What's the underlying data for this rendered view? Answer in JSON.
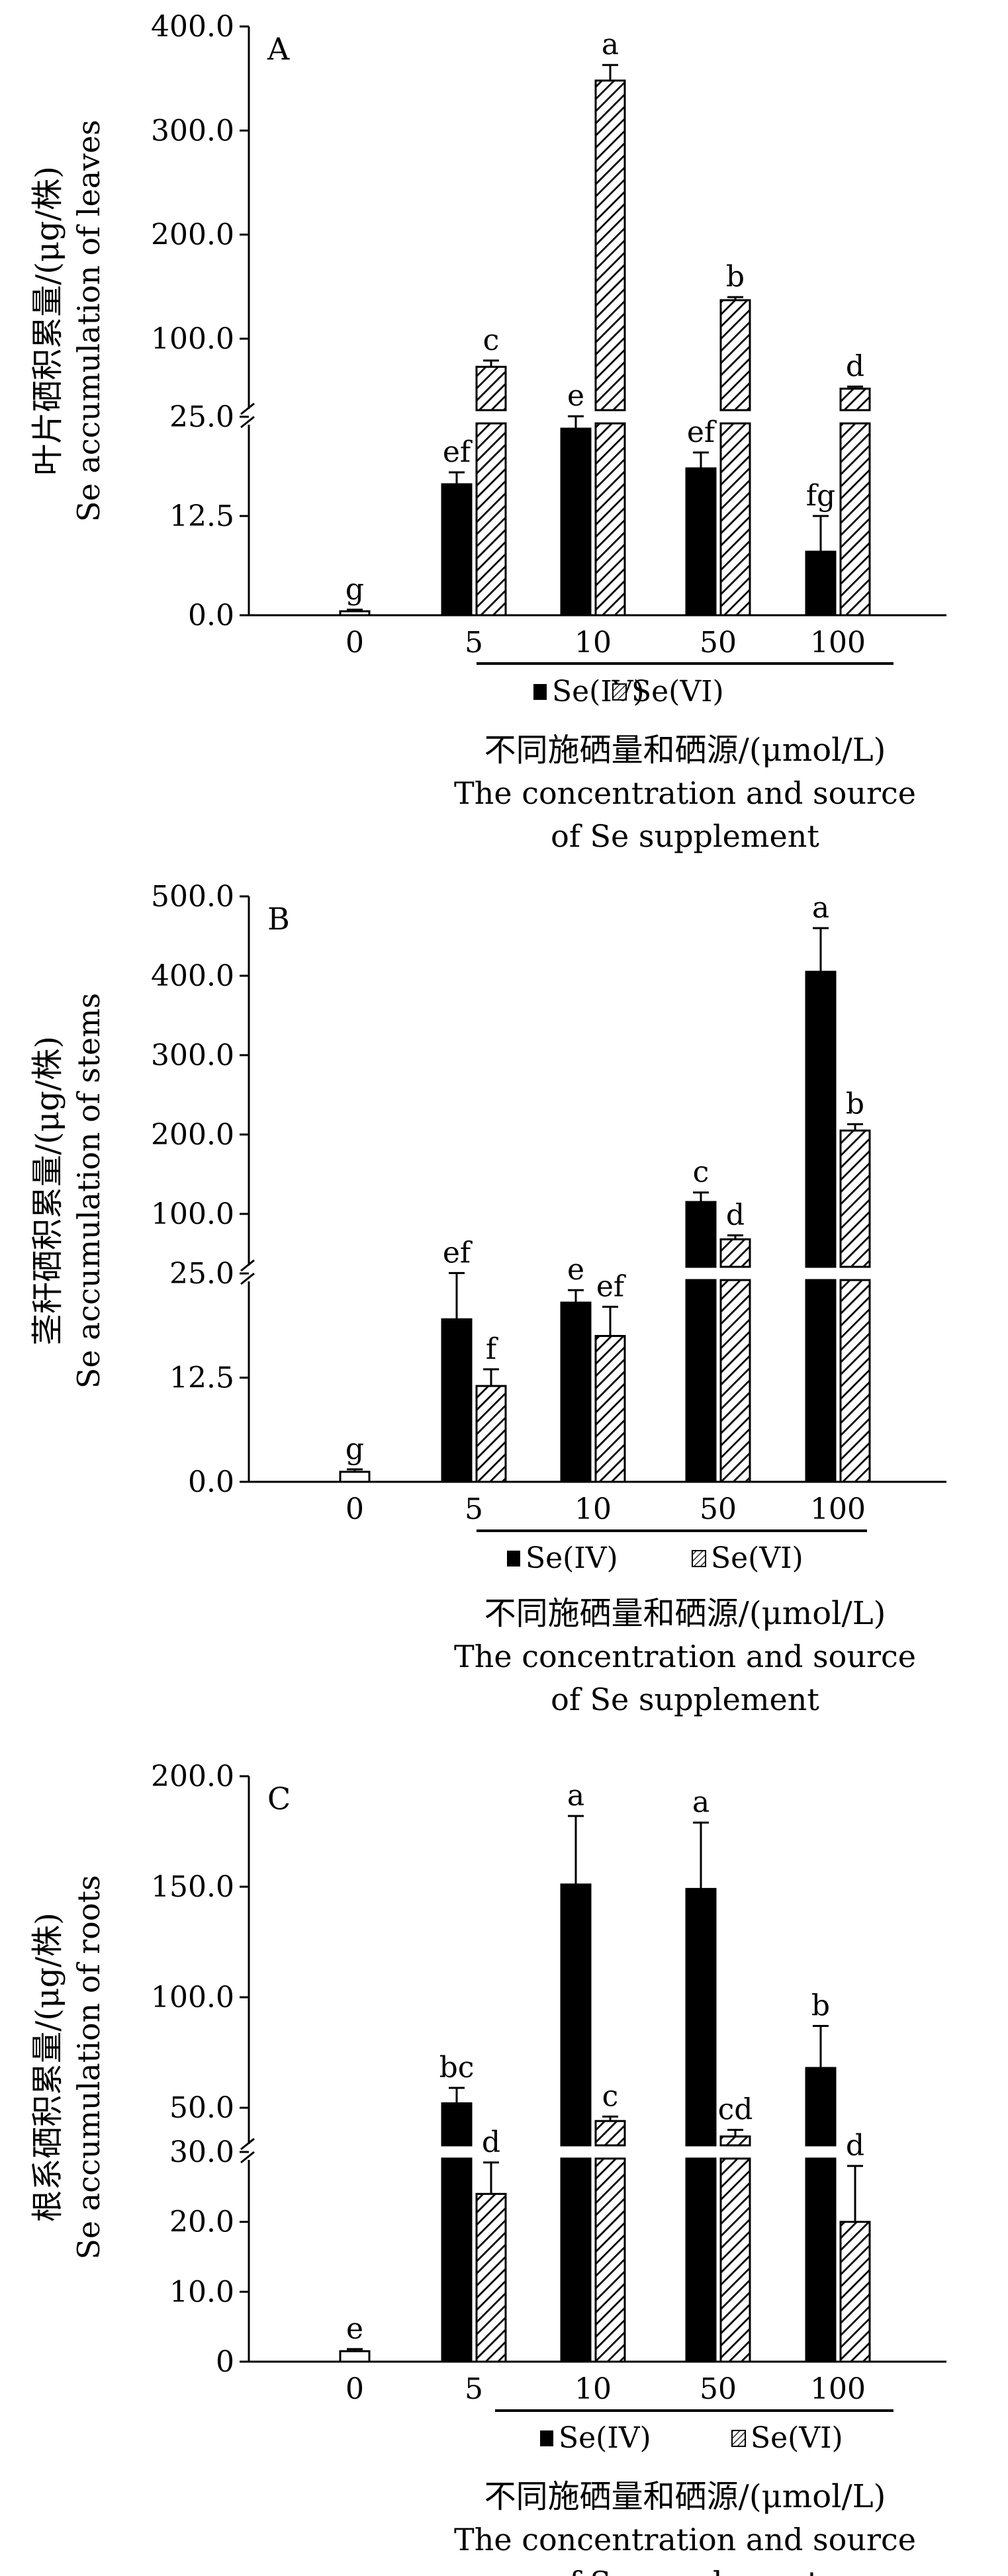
{
  "chart_data": [
    {
      "type": "bar",
      "panel_label": "A",
      "ylabel_cn": "叶片硒积累量/(μg/株)",
      "ylabel_en": "Se accumulation of leaves",
      "xlabel_cn": "不同施硒量和硒源/(μmol/L)",
      "xlabel_en_1": "The concentration and source",
      "xlabel_en_2": "of Se supplement",
      "categories": [
        "0",
        "5",
        "10",
        "50",
        "100"
      ],
      "broken_axis": {
        "lower": [
          0,
          25
        ],
        "upper": [
          25,
          400
        ]
      },
      "lower_ticks": [
        "0.0",
        "12.5",
        "25.0"
      ],
      "upper_ticks": [
        "100.0",
        "200.0",
        "300.0",
        "400.0"
      ],
      "control": {
        "value": 0.5,
        "error": 0.2,
        "letter": "g"
      },
      "series": [
        {
          "name": "Se(IV)",
          "values": [
            null,
            16.5,
            23.5,
            18.5,
            8.0
          ],
          "errors": [
            null,
            1.5,
            2.0,
            2.0,
            4.5
          ],
          "letters": [
            null,
            "ef",
            "e",
            "ef",
            "fg"
          ]
        },
        {
          "name": "Se(VI)",
          "values": [
            null,
            73,
            348,
            137,
            52
          ],
          "errors": [
            null,
            6,
            15,
            3,
            2
          ],
          "letters": [
            null,
            "c",
            "a",
            "b",
            "d"
          ]
        }
      ],
      "legend": [
        "Se(IV)",
        "Se(VI)"
      ]
    },
    {
      "type": "bar",
      "panel_label": "B",
      "ylabel_cn": "茎秆硒积累量/(μg/株)",
      "ylabel_en": "Se accumulation of stems",
      "xlabel_cn": "不同施硒量和硒源/(μmol/L)",
      "xlabel_en_1": "The concentration and source",
      "xlabel_en_2": "of Se supplement",
      "categories": [
        "0",
        "5",
        "10",
        "50",
        "100"
      ],
      "broken_axis": {
        "lower": [
          0,
          25
        ],
        "upper": [
          25,
          500
        ]
      },
      "lower_ticks": [
        "0.0",
        "12.5",
        "25.0"
      ],
      "upper_ticks": [
        "100.0",
        "200.0",
        "300.0",
        "400.0",
        "500.0"
      ],
      "control": {
        "value": 1.2,
        "error": 0.3,
        "letter": "g"
      },
      "series": [
        {
          "name": "Se(IV)",
          "values": [
            null,
            19.5,
            21.5,
            115,
            405
          ],
          "errors": [
            null,
            6.0,
            1.5,
            12,
            55
          ],
          "letters": [
            null,
            "ef",
            "e",
            "c",
            "a"
          ]
        },
        {
          "name": "Se(VI)",
          "values": [
            null,
            11.5,
            17.5,
            68,
            205
          ],
          "errors": [
            null,
            2.0,
            3.5,
            5,
            8
          ],
          "letters": [
            null,
            "f",
            "ef",
            "d",
            "b"
          ]
        }
      ],
      "legend": [
        "Se(IV)",
        "Se(VI)"
      ]
    },
    {
      "type": "bar",
      "panel_label": "C",
      "ylabel_cn": "根系硒积累量/(μg/株)",
      "ylabel_en": "Se accumulation of roots",
      "xlabel_cn": "不同施硒量和硒源/(μmol/L)",
      "xlabel_en_1": "The concentration and source",
      "xlabel_en_2": "of Se supplement",
      "categories": [
        "0",
        "5",
        "10",
        "50",
        "100"
      ],
      "broken_axis": {
        "lower": [
          0,
          30
        ],
        "upper": [
          30,
          200
        ]
      },
      "lower_ticks": [
        "0",
        "10.0",
        "20.0",
        "30.0"
      ],
      "upper_ticks": [
        "50.0",
        "100.0",
        "150.0",
        "200.0"
      ],
      "control": {
        "value": 1.5,
        "error": 0.3,
        "letter": "e"
      },
      "series": [
        {
          "name": "Se(IV)",
          "values": [
            null,
            52,
            151,
            149,
            68
          ],
          "errors": [
            null,
            7,
            31,
            30,
            19
          ],
          "letters": [
            null,
            "bc",
            "a",
            "a",
            "b"
          ]
        },
        {
          "name": "Se(VI)",
          "values": [
            null,
            24,
            44,
            37,
            20
          ],
          "errors": [
            null,
            4.5,
            2,
            3,
            8
          ],
          "letters": [
            null,
            "d",
            "c",
            "cd",
            "d"
          ]
        }
      ],
      "legend": [
        "Se(IV)",
        "Se(VI)"
      ]
    }
  ]
}
